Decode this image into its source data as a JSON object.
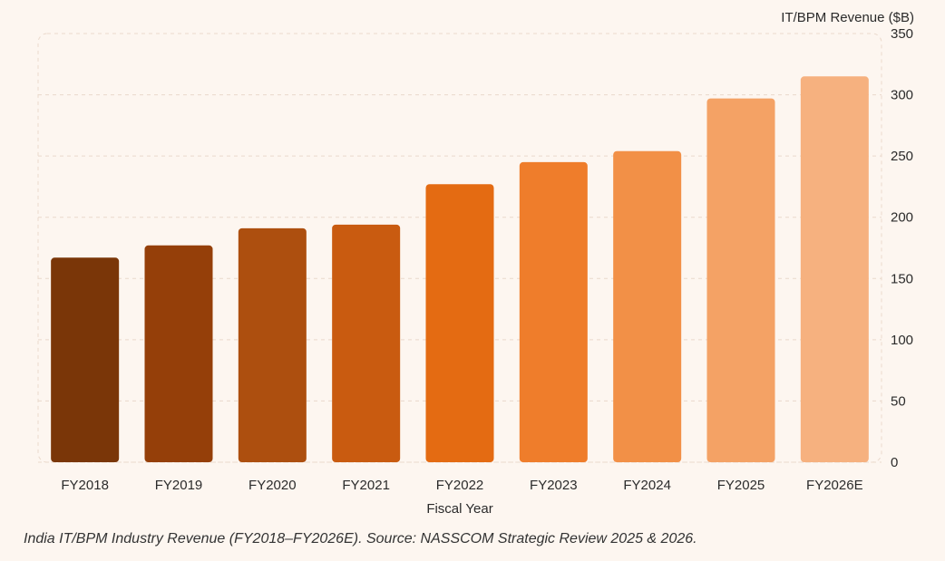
{
  "chart_data": {
    "type": "bar",
    "categories": [
      "FY2018",
      "FY2019",
      "FY2020",
      "FY2021",
      "FY2022",
      "FY2023",
      "FY2024",
      "FY2025",
      "FY2026E"
    ],
    "values": [
      167,
      177,
      191,
      194,
      227,
      245,
      254,
      297,
      315
    ],
    "bar_colors": [
      "#7a3608",
      "#953f09",
      "#ad4f0f",
      "#c95b10",
      "#e46b12",
      "#ef7d2b",
      "#f29047",
      "#f4a265",
      "#f6b17f"
    ],
    "xlabel": "Fiscal Year",
    "ylabel": "IT/BPM Revenue ($B)",
    "ylim": [
      0,
      350
    ],
    "yticks": [
      0,
      50,
      100,
      150,
      200,
      250,
      300,
      350
    ],
    "y_axis_side": "right",
    "grid": true,
    "legend": "none"
  },
  "caption": "India IT/BPM Industry Revenue (FY2018–FY2026E). Source: NASSCOM Strategic Review 2025 & 2026."
}
